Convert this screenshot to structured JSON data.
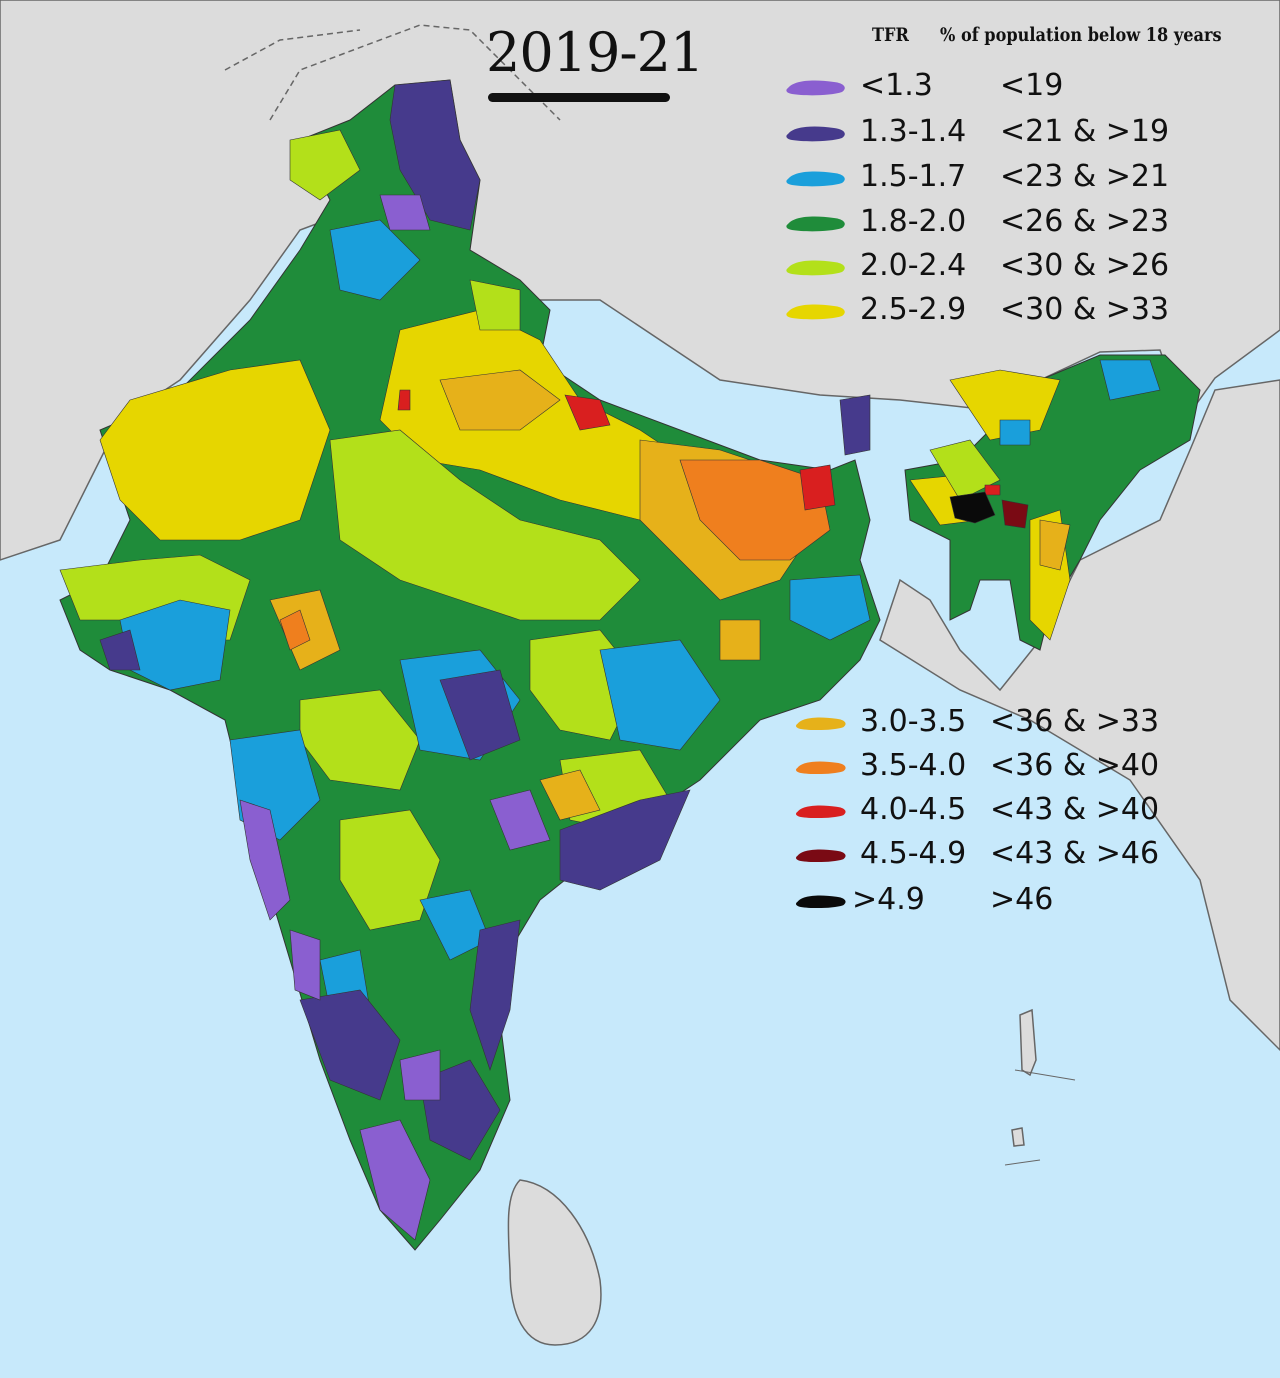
{
  "title": "2019-21",
  "legend": {
    "header_tfr": "TFR",
    "header_population": "% of population below 18 years",
    "items": [
      {
        "tfr": "<1.3",
        "pop": "<19",
        "color": "#8a5fd0"
      },
      {
        "tfr": "1.3-1.4",
        "pop": "<21 & >19",
        "color": "#463a8c"
      },
      {
        "tfr": "1.5-1.7",
        "pop": "<23 & >21",
        "color": "#1a9fdb"
      },
      {
        "tfr": "1.8-2.0",
        "pop": "<26 & >23",
        "color": "#1f8c3a"
      },
      {
        "tfr": "2.0-2.4",
        "pop": "<30 & >26",
        "color": "#b3e01a"
      },
      {
        "tfr": "2.5-2.9",
        "pop": "<30 & >33",
        "color": "#e6d600"
      },
      {
        "tfr": "3.0-3.5",
        "pop": "<36 & >33",
        "color": "#e6b11a"
      },
      {
        "tfr": "3.5-4.0",
        "pop": "<36 & >40",
        "color": "#ef7f1e"
      },
      {
        "tfr": "4.0-4.5",
        "pop": "<43 & >40",
        "color": "#d91f1f"
      },
      {
        "tfr": "4.5-4.9",
        "pop": "<43 & >46",
        "color": "#7a0a14"
      },
      {
        "tfr": ">4.9",
        "pop": ">46",
        "color": "#0a0a0a"
      }
    ]
  },
  "colors": {
    "sea": "#c7e9fb",
    "land_other": "#dcdcdc",
    "border": "#555555"
  }
}
